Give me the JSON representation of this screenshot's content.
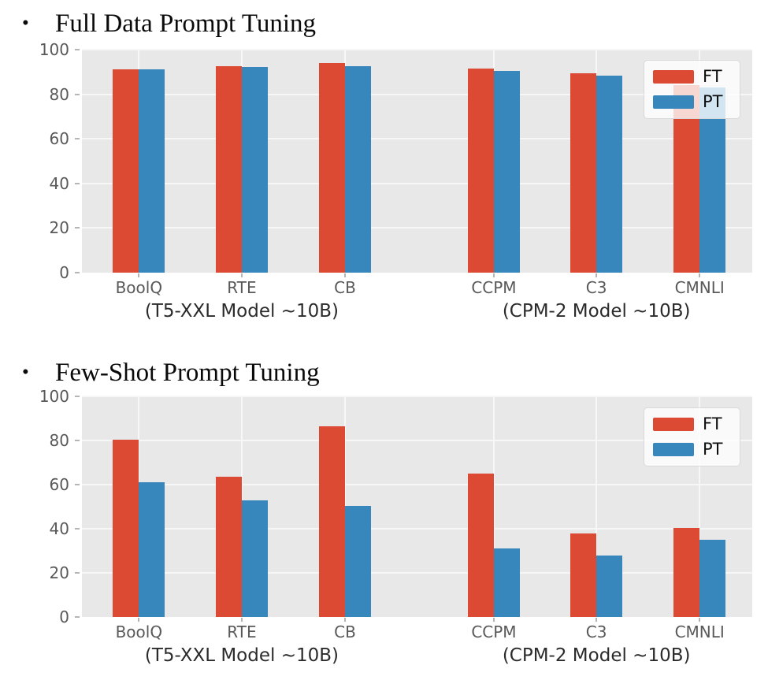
{
  "sections": [
    {
      "bullet": "•",
      "title": "Full Data Prompt Tuning"
    },
    {
      "bullet": "•",
      "title": "Few-Shot Prompt Tuning"
    }
  ],
  "colors": {
    "ft": "#DC4A33",
    "pt": "#3787BD",
    "plot_bg": "#E8E8E8",
    "grid": "#F7F7F7",
    "tick_mark": "#B5B5B5",
    "tick_label": "#595959",
    "group_label": "#2B2B2B"
  },
  "chart_data": [
    {
      "type": "bar",
      "title": "Full Data Prompt Tuning",
      "categories": [
        "BoolQ",
        "RTE",
        "CB",
        "CCPM",
        "C3",
        "CMNLI"
      ],
      "group_labels": [
        "(T5-XXL Model ~10B)",
        "(CPM-2 Model ~10B)"
      ],
      "series": [
        {
          "name": "FT",
          "color": "#DC4A33",
          "values": [
            91.2,
            92.7,
            94.0,
            91.4,
            89.5,
            84.2
          ]
        },
        {
          "name": "PT",
          "color": "#3787BD",
          "values": [
            91.0,
            92.2,
            92.5,
            90.6,
            88.2,
            83.0
          ]
        }
      ],
      "xlabel": "",
      "ylabel": "",
      "ylim": [
        0,
        100
      ],
      "yticks": [
        0,
        20,
        40,
        60,
        80,
        100
      ],
      "grid": true,
      "legend_position": "upper right",
      "legend_labels": [
        "FT",
        "PT"
      ]
    },
    {
      "type": "bar",
      "title": "Few-Shot Prompt Tuning",
      "categories": [
        "BoolQ",
        "RTE",
        "CB",
        "CCPM",
        "C3",
        "CMNLI"
      ],
      "group_labels": [
        "(T5-XXL Model ~10B)",
        "(CPM-2 Model ~10B)"
      ],
      "series": [
        {
          "name": "FT",
          "color": "#DC4A33",
          "values": [
            80.5,
            63.5,
            86.5,
            65.0,
            38.0,
            40.5
          ]
        },
        {
          "name": "PT",
          "color": "#3787BD",
          "values": [
            61.0,
            53.0,
            50.5,
            31.0,
            28.0,
            35.0
          ]
        }
      ],
      "xlabel": "",
      "ylabel": "",
      "ylim": [
        0,
        100
      ],
      "yticks": [
        0,
        20,
        40,
        60,
        80,
        100
      ],
      "grid": true,
      "legend_position": "upper right",
      "legend_labels": [
        "FT",
        "PT"
      ]
    }
  ]
}
